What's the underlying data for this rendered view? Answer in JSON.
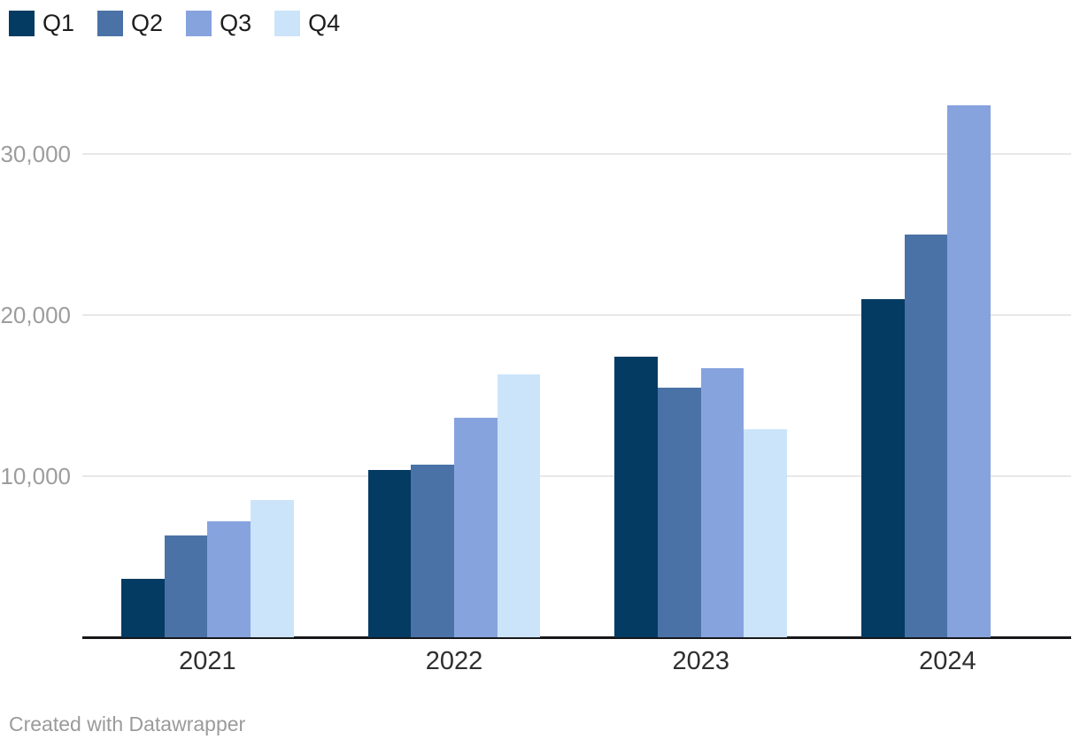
{
  "chart_data": {
    "type": "bar",
    "title": "",
    "xlabel": "",
    "ylabel": "",
    "categories": [
      "2021",
      "2022",
      "2023",
      "2024"
    ],
    "series": [
      {
        "name": "Q1",
        "color": "#043b62",
        "values": [
          3600,
          10400,
          17400,
          21000
        ]
      },
      {
        "name": "Q2",
        "color": "#4a72a7",
        "values": [
          6300,
          10700,
          15500,
          25000
        ]
      },
      {
        "name": "Q3",
        "color": "#87a3de",
        "values": [
          7200,
          13600,
          16700,
          33000
        ]
      },
      {
        "name": "Q4",
        "color": "#cbe4fa",
        "values": [
          8500,
          16300,
          12900,
          null
        ]
      }
    ],
    "y_ticks": [
      10000,
      20000,
      30000
    ],
    "y_tick_labels": [
      "10,000",
      "20,000",
      "30,000"
    ],
    "ylim": [
      0,
      39560
    ],
    "grid": true,
    "legend_position": "top-left",
    "colors": {
      "gridline": "#e8e8e8",
      "axis_line": "#18181b",
      "y_tick_text": "#9d9d9d",
      "x_tick_text": "#2f2f2f",
      "legend_text": "#1d1d1d",
      "footer_text": "#9b9b9b"
    }
  },
  "footer": {
    "credit": "Created with Datawrapper"
  }
}
